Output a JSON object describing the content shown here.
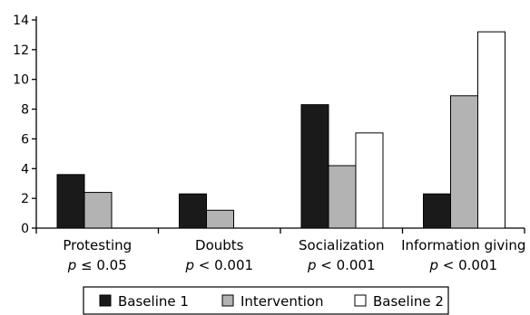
{
  "chart_data": {
    "type": "bar",
    "title": "",
    "xlabel": "",
    "ylabel": "",
    "ylim": [
      0,
      14
    ],
    "yticks": [
      0,
      2,
      4,
      6,
      8,
      10,
      12,
      14
    ],
    "grid": false,
    "legend_position": "bottom",
    "categories": [
      "Protesting",
      "Doubts",
      "Socialization",
      "Information giving"
    ],
    "p_values": [
      {
        "symbol": "p",
        "relation": "≤ 0.05"
      },
      {
        "symbol": "p",
        "relation": "< 0.001"
      },
      {
        "symbol": "p",
        "relation": "< 0.001"
      },
      {
        "symbol": "p",
        "relation": "< 0.001"
      }
    ],
    "series": [
      {
        "name": "Baseline 1",
        "color": "#1a1a1a",
        "values": [
          3.6,
          2.3,
          8.3,
          2.3
        ]
      },
      {
        "name": "Intervention",
        "color": "#b3b3b3",
        "values": [
          2.4,
          1.2,
          4.2,
          8.9
        ]
      },
      {
        "name": "Baseline 2",
        "color": "#ffffff",
        "values": [
          null,
          null,
          6.4,
          13.2
        ]
      }
    ]
  }
}
